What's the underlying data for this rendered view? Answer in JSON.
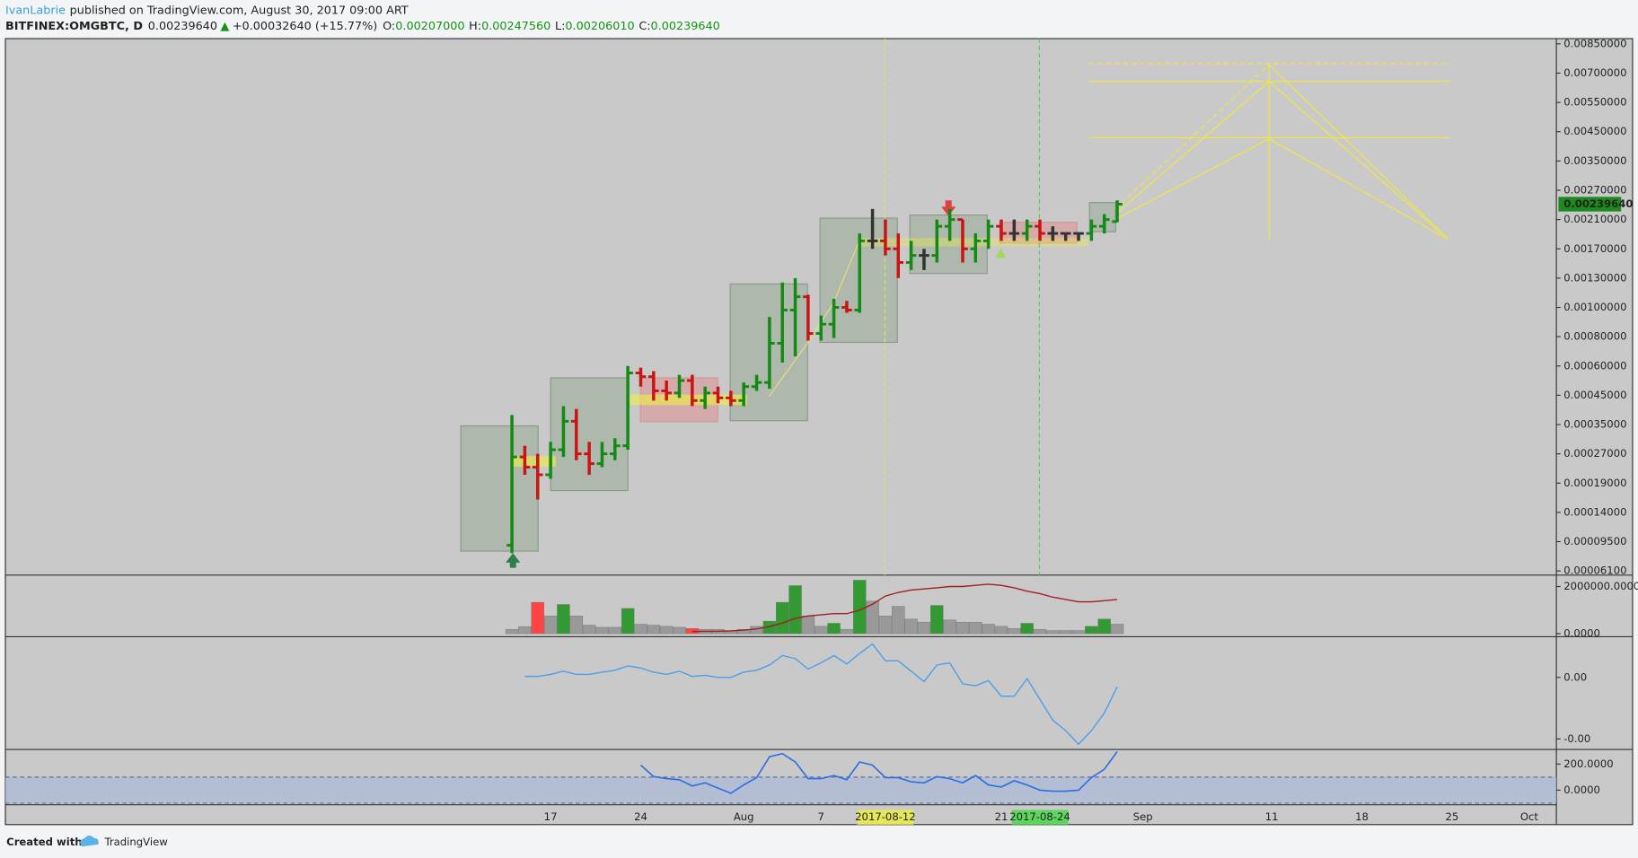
{
  "header": {
    "author": "IvanLabrie",
    "published": "published on TradingView.com, August 30, 2017 09:00 ART",
    "symbol": "BITFINEX:OMGBTC, D",
    "last": "0.00239640",
    "arrow": "▲",
    "change": "+0.00032640 (+15.77%)",
    "o_label": "O:",
    "open": "0.00207000",
    "h_label": "H:",
    "high": "0.00247560",
    "l_label": "L:",
    "low": "0.00206010",
    "c_label": "C:",
    "close": "0.00239640"
  },
  "chart_data": {
    "type": "ohlc",
    "log": true,
    "up_color": "#138a13",
    "down_color": "#c81414",
    "flat_color": "#333333",
    "ohlc": [
      [
        9e-05,
        0.00038,
        8e-05,
        0.00026
      ],
      [
        0.00026,
        0.00029,
        0.00021,
        0.00023
      ],
      [
        0.00023,
        0.00027,
        0.00016,
        0.00021
      ],
      [
        0.00021,
        0.0003,
        0.0002,
        0.00028
      ],
      [
        0.00028,
        0.00041,
        0.00026,
        0.00036
      ],
      [
        0.00036,
        0.0004,
        0.00025,
        0.00027
      ],
      [
        0.00027,
        0.0003,
        0.00021,
        0.00024
      ],
      [
        0.00024,
        0.0003,
        0.00023,
        0.00027
      ],
      [
        0.00027,
        0.00031,
        0.00025,
        0.00029
      ],
      [
        0.00029,
        0.0006,
        0.00028,
        0.00056
      ],
      [
        0.00056,
        0.00059,
        0.00049,
        0.00054
      ],
      [
        0.00054,
        0.00057,
        0.00043,
        0.00047
      ],
      [
        0.00047,
        0.00052,
        0.00043,
        0.00046
      ],
      [
        0.00046,
        0.00055,
        0.00044,
        0.00052
      ],
      [
        0.00052,
        0.00055,
        0.00041,
        0.00043
      ],
      [
        0.00043,
        0.00049,
        0.0004,
        0.00046
      ],
      [
        0.00046,
        0.00049,
        0.00042,
        0.00044
      ],
      [
        0.00044,
        0.00047,
        0.00041,
        0.00043
      ],
      [
        0.00043,
        0.00051,
        0.00041,
        0.00049
      ],
      [
        0.00049,
        0.00055,
        0.00047,
        0.00051
      ],
      [
        0.00051,
        0.00093,
        0.00048,
        0.00075
      ],
      [
        0.00075,
        0.00125,
        0.00062,
        0.00098
      ],
      [
        0.00098,
        0.0013,
        0.00066,
        0.0011
      ],
      [
        0.0011,
        0.00112,
        0.00077,
        0.00082
      ],
      [
        0.00082,
        0.00094,
        0.00077,
        0.00088
      ],
      [
        0.00088,
        0.00108,
        0.00079,
        0.001
      ],
      [
        0.001,
        0.00106,
        0.00096,
        0.00098
      ],
      [
        0.00098,
        0.0019,
        0.00096,
        0.0018
      ],
      [
        0.0018,
        0.0023,
        0.0017,
        0.0018
      ],
      [
        0.0018,
        0.0021,
        0.0016,
        0.0017
      ],
      [
        0.0017,
        0.0019,
        0.0013,
        0.0015
      ],
      [
        0.0015,
        0.0018,
        0.0014,
        0.0016
      ],
      [
        0.0016,
        0.0017,
        0.0014,
        0.0016
      ],
      [
        0.0016,
        0.0021,
        0.0015,
        0.002
      ],
      [
        0.002,
        0.0023,
        0.0018,
        0.0021
      ],
      [
        0.0021,
        0.0021,
        0.0015,
        0.0017
      ],
      [
        0.0017,
        0.0019,
        0.0015,
        0.0018
      ],
      [
        0.0018,
        0.0021,
        0.0017,
        0.002
      ],
      [
        0.002,
        0.0021,
        0.0018,
        0.0019
      ],
      [
        0.0019,
        0.0021,
        0.0018,
        0.0019
      ],
      [
        0.0019,
        0.0021,
        0.0018,
        0.002
      ],
      [
        0.002,
        0.0021,
        0.0018,
        0.0019
      ],
      [
        0.0019,
        0.002,
        0.0018,
        0.0019
      ],
      [
        0.0019,
        0.0019,
        0.0018,
        0.0019
      ],
      [
        0.0019,
        0.0019,
        0.0018,
        0.0019
      ],
      [
        0.0019,
        0.0021,
        0.0018,
        0.002
      ],
      [
        0.002,
        0.0022,
        0.0019,
        0.0021
      ],
      [
        0.00207,
        0.0024756,
        0.0020601,
        0.0023964
      ]
    ],
    "ylim": [
      6.1e-05,
      0.0085
    ],
    "yticks": [
      {
        "value": 0.0085,
        "label": "0.00850000"
      },
      {
        "value": 0.007,
        "label": "0.00700000"
      },
      {
        "value": 0.0055,
        "label": "0.00550000"
      },
      {
        "value": 0.0045,
        "label": "0.00450000"
      },
      {
        "value": 0.0035,
        "label": "0.00350000"
      },
      {
        "value": 0.0027,
        "label": "0.00270000"
      },
      {
        "value": 0.0021,
        "label": "0.00210000"
      },
      {
        "value": 0.0017,
        "label": "0.00170000"
      },
      {
        "value": 0.0013,
        "label": "0.00130000"
      },
      {
        "value": 0.001,
        "label": "0.00100000"
      },
      {
        "value": 0.0008,
        "label": "0.00080000"
      },
      {
        "value": 0.0006,
        "label": "0.00060000"
      },
      {
        "value": 0.00045,
        "label": "0.00045000"
      },
      {
        "value": 0.00035,
        "label": "0.00035000"
      },
      {
        "value": 0.00027,
        "label": "0.00027000"
      },
      {
        "value": 0.00019,
        "label": "0.00019000"
      },
      {
        "value": 0.00014,
        "label": "0.00014000"
      },
      {
        "value": 9.5e-05,
        "label": "0.00009500"
      },
      {
        "value": 6.1e-05,
        "label": "0.00006100"
      }
    ],
    "last_price": {
      "value": 0.0023964,
      "label": "0.00239640"
    },
    "last_color": "#1e8a1e",
    "xlabels": [
      "17",
      "24",
      "Aug",
      "7",
      "2017-08-12",
      "21",
      "2017-08-24",
      "Sep",
      "11",
      "18",
      "25",
      "Oct"
    ]
  },
  "volume": {
    "values": [
      180000,
      300000,
      1330000,
      750000,
      1240000,
      750000,
      360000,
      270000,
      270000,
      1070000,
      400000,
      360000,
      310000,
      270000,
      220000,
      180000,
      180000,
      130000,
      180000,
      310000,
      530000,
      1330000,
      2040000,
      750000,
      310000,
      440000,
      180000,
      2270000,
      1380000,
      750000,
      1160000,
      620000,
      490000,
      1200000,
      580000,
      490000,
      490000,
      400000,
      310000,
      220000,
      440000,
      180000,
      130000,
      130000,
      130000,
      310000,
      620000,
      400000
    ],
    "colors": [
      "#999999",
      "#999999",
      "#ff4444",
      "#999999",
      "#339933",
      "#999999",
      "#999999",
      "#999999",
      "#999999",
      "#339933",
      "#999999",
      "#999999",
      "#999999",
      "#999999",
      "#ff4444",
      "#999999",
      "#999999",
      "#999999",
      "#999999",
      "#999999",
      "#339933",
      "#339933",
      "#339933",
      "#999999",
      "#999999",
      "#339933",
      "#999999",
      "#339933",
      "#999999",
      "#999999",
      "#999999",
      "#999999",
      "#999999",
      "#339933",
      "#999999",
      "#999999",
      "#999999",
      "#999999",
      "#999999",
      "#999999",
      "#339933",
      "#999999",
      "#999999",
      "#999999",
      "#999999",
      "#339933",
      "#339933",
      "#999999"
    ],
    "ma": [
      null,
      null,
      null,
      null,
      null,
      null,
      null,
      null,
      null,
      null,
      null,
      null,
      null,
      null,
      90000,
      100000,
      100000,
      120000,
      150000,
      200000,
      300000,
      450000,
      650000,
      750000,
      800000,
      850000,
      850000,
      1000000,
      1250000,
      1600000,
      1750000,
      1850000,
      1900000,
      1950000,
      2000000,
      2000000,
      2050000,
      2100000,
      2050000,
      1950000,
      1800000,
      1700000,
      1550000,
      1450000,
      1350000,
      1350000,
      1400000,
      1450000
    ],
    "ma_color": "#a02020",
    "ylim": [
      -130000,
      2440000
    ],
    "yticks": [
      {
        "value": 2000000,
        "label": "2000000.0000"
      },
      {
        "value": 0,
        "label": "0.0000"
      }
    ]
  },
  "oscillator": {
    "values": [
      null,
      7e-05,
      7e-05,
      0.0002,
      0.00041,
      0.0002,
      0.0002,
      0.00034,
      0.00047,
      0.00075,
      0.00061,
      0.00034,
      0.0002,
      0.00041,
      7e-05,
      0.00014,
      0,
      0,
      0.00034,
      0.00047,
      0.00081,
      0.00142,
      0.00122,
      0.00054,
      0.00095,
      0.00142,
      0.00088,
      0.00156,
      0.00217,
      0.00108,
      0.00108,
      0.00041,
      -0.00027,
      0.00081,
      0.00095,
      -0.00041,
      -0.00054,
      -0.0002,
      -0.00122,
      -0.00122,
      -7e-05,
      -0.00142,
      -0.00278,
      -0.00346,
      -0.00434,
      -0.00346,
      -0.00231,
      -0.00061
    ],
    "color": "#4a9fea",
    "ylim": [
      -0.00468,
      0.00258
    ],
    "yticks": [
      {
        "value": 0,
        "label": "0.00"
      },
      {
        "value": -0.004,
        "label": "-0.00"
      }
    ]
  },
  "cci": {
    "values": [
      null,
      null,
      null,
      null,
      null,
      null,
      null,
      null,
      null,
      null,
      192,
      104,
      88,
      80,
      32,
      56,
      16,
      -24,
      40,
      96,
      256,
      280,
      216,
      88,
      88,
      112,
      80,
      216,
      192,
      96,
      96,
      64,
      56,
      104,
      88,
      56,
      112,
      40,
      24,
      72,
      40,
      0,
      -8,
      -8,
      0,
      96,
      160,
      296
    ],
    "color": "#2d6ee0",
    "band": [
      -100,
      100
    ],
    "band_color": "#aab9d8",
    "ylim": [
      -112,
      304
    ],
    "yticks": [
      {
        "value": 200,
        "label": "200.0000"
      },
      {
        "value": 0,
        "label": "0.0000"
      }
    ]
  },
  "footer": {
    "created": "Created with",
    "brand": "TradingView"
  }
}
